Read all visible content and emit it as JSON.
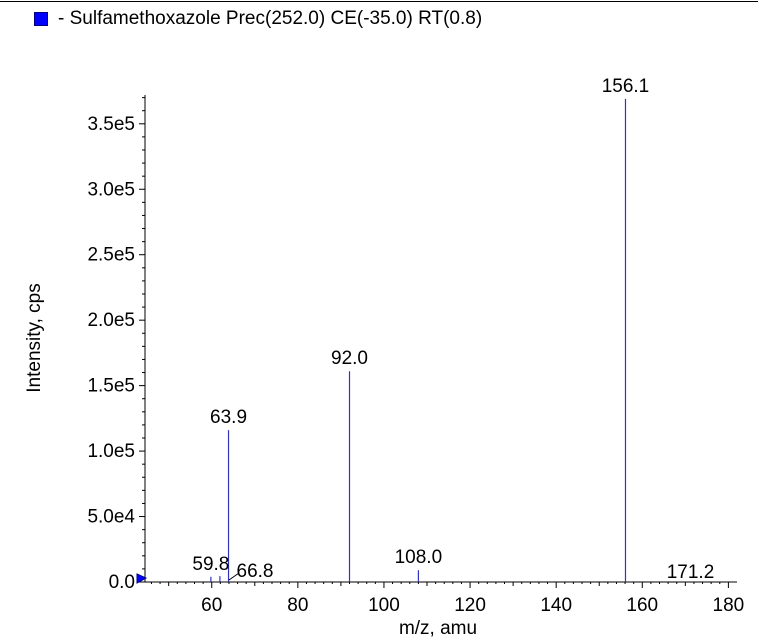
{
  "legend": {
    "text": "- Sulfamethoxazole Prec(252.0) CE(-35.0) RT(0.8)",
    "color": "#0000ff"
  },
  "chart_data": {
    "type": "bar",
    "xlabel": "m/z, amu",
    "ylabel": "Intensity, cps",
    "xlim": [
      44.5,
      182
    ],
    "ylim": [
      0,
      372000
    ],
    "xticks": [
      60,
      80,
      100,
      120,
      140,
      160,
      180
    ],
    "yticks": [
      0,
      50000,
      100000,
      150000,
      200000,
      250000,
      300000,
      350000
    ],
    "ytick_labels": [
      "0.0",
      "5.0e4",
      "1.0e5",
      "1.5e5",
      "2.0e5",
      "2.5e5",
      "3.0e5",
      "3.5e5"
    ],
    "series_color": "#3333bb",
    "peaks": [
      {
        "mz": 59.8,
        "intensity": 4000
      },
      {
        "mz": 61.9,
        "intensity": 4500
      },
      {
        "mz": 63.9,
        "intensity": 116000
      },
      {
        "mz": 92.0,
        "intensity": 161000
      },
      {
        "mz": 108.0,
        "intensity": 9000
      },
      {
        "mz": 156.1,
        "intensity": 369000
      }
    ],
    "peak_labels": [
      {
        "text": "156.1",
        "mz": 156.1,
        "intensity": 369000
      },
      {
        "text": "92.0",
        "mz": 92.0,
        "intensity": 161000
      },
      {
        "text": "63.9",
        "mz": 63.9,
        "intensity": 116000
      },
      {
        "text": "108.0",
        "mz": 108.0,
        "intensity": 9000
      },
      {
        "text": "59.8",
        "mz": 59.8,
        "intensity": 4000
      },
      {
        "text": "66.8",
        "mz": 66.8,
        "intensity": 0,
        "leader": true
      },
      {
        "text": "171.2",
        "mz": 171.2,
        "intensity": 0
      }
    ]
  }
}
